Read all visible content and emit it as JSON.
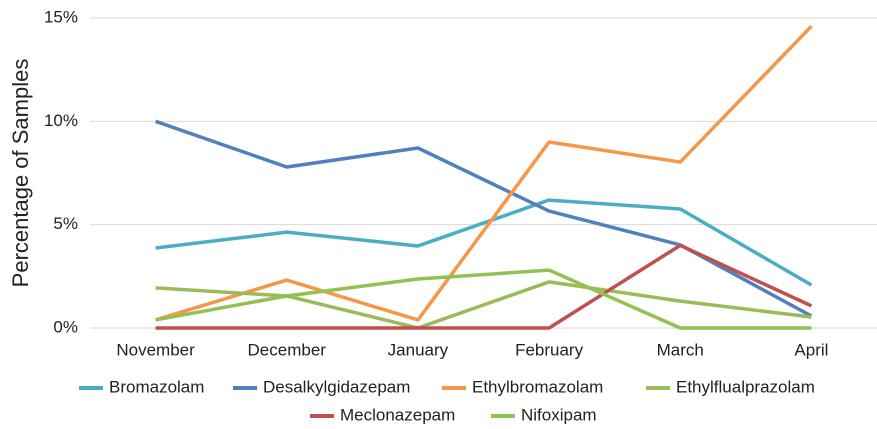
{
  "chart_data": {
    "type": "line",
    "y_label": "Percentage of Samples",
    "categories": [
      "November",
      "December",
      "January",
      "February",
      "March",
      "April"
    ],
    "ylim": [
      0,
      15
    ],
    "yticks": [
      {
        "value": 0,
        "label": "0%"
      },
      {
        "value": 5,
        "label": "5%"
      },
      {
        "value": 10,
        "label": "10%"
      },
      {
        "value": 15,
        "label": "15%"
      }
    ],
    "grid": true,
    "legend": "bottom",
    "series": [
      {
        "name": "Bromazolam",
        "color": "#4bacc6",
        "values": [
          3.87,
          4.64,
          3.97,
          6.19,
          5.76,
          2.08
        ]
      },
      {
        "name": "Desalkylgidazepam",
        "color": "#4f81bd",
        "values": [
          10.0,
          7.79,
          8.71,
          5.66,
          4.02,
          0.58
        ]
      },
      {
        "name": "Ethylbromazolam",
        "color": "#f79646",
        "values": [
          0.39,
          2.32,
          0.39,
          9.0,
          8.03,
          14.6
        ]
      },
      {
        "name": "Ethylflualprazolam",
        "color": "#9bbb59",
        "values": [
          1.94,
          1.55,
          0,
          2.23,
          1.3,
          0.53
        ]
      },
      {
        "name": "Meclonazepam",
        "color": "#c0504d",
        "values": [
          0,
          0,
          0,
          0,
          4.0,
          1.07
        ]
      },
      {
        "name": "Nifoxipam",
        "color": "#93c052",
        "values": [
          0.39,
          1.55,
          2.37,
          2.8,
          0,
          0
        ]
      }
    ]
  }
}
